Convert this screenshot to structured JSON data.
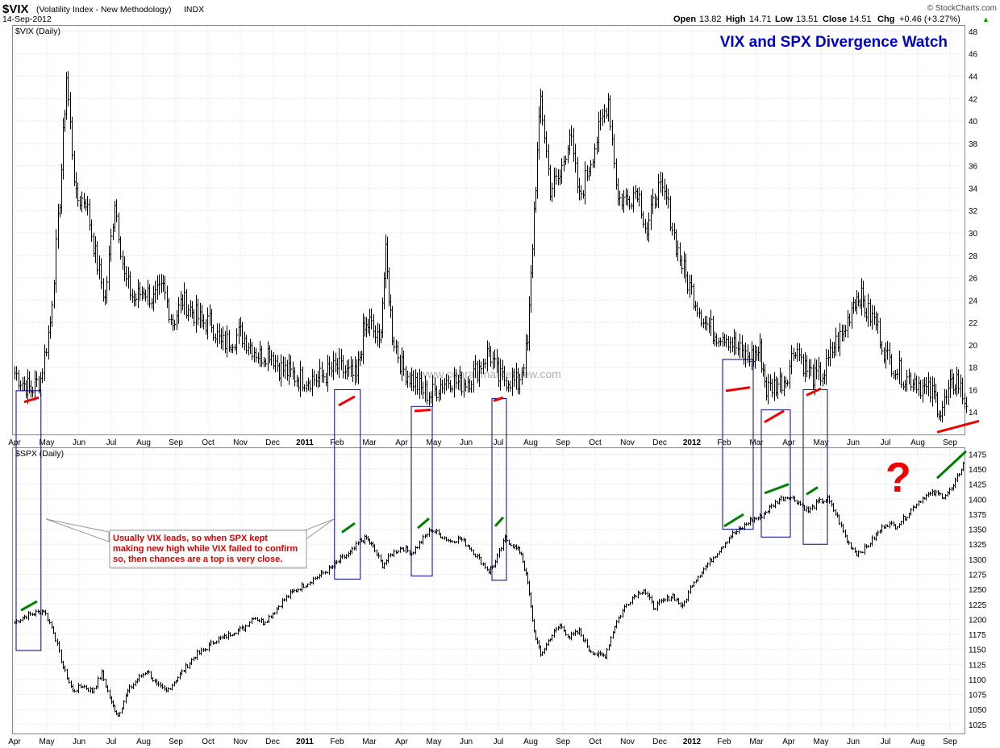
{
  "header": {
    "symbol": "$VIX",
    "description": "(Volatility Index - New Methodology)",
    "exchange": "INDX",
    "date": "14-Sep-2012",
    "brand": "© StockCharts.com",
    "open_label": "Open",
    "open": "13.82",
    "high_label": "High",
    "high": "14.71",
    "low_label": "Low",
    "low": "13.51",
    "close_label": "Close",
    "close": "14.51",
    "chg_label": "Chg",
    "chg": "+0.46 (+3.27%)",
    "chg_arrow": "▲"
  },
  "title": "VIX and SPX Divergence Watch",
  "watermark": "www.cobrasmarketview.com",
  "callout": {
    "lines": [
      "Usually VIX leads, so when SPX kept",
      "making new high while VIX failed to confirm",
      "so, then chances are a top is very close."
    ],
    "color": "#dd0000"
  },
  "question_mark": "?",
  "colors": {
    "box": "#00008b",
    "bearish": "#ee0000",
    "bullish": "#008000",
    "title": "#0000cc",
    "price": "#000000"
  },
  "months": [
    "Apr",
    "May",
    "Jun",
    "Jul",
    "Aug",
    "Sep",
    "Oct",
    "Nov",
    "Dec",
    "2011",
    "Feb",
    "Mar",
    "Apr",
    "May",
    "Jun",
    "Jul",
    "Aug",
    "Sep",
    "Oct",
    "Nov",
    "Dec",
    "2012",
    "Feb",
    "Mar",
    "Apr",
    "May",
    "Jun",
    "Jul",
    "Aug",
    "Sep"
  ],
  "bold_months": [
    "2011",
    "2012"
  ],
  "chart_data": [
    {
      "type": "bar",
      "title": "$VIX (Daily)",
      "panel": "vix",
      "ylim": [
        12,
        48.5
      ],
      "yticks": [
        14,
        16,
        18,
        20,
        22,
        24,
        26,
        28,
        30,
        32,
        34,
        36,
        38,
        40,
        42,
        44,
        46,
        48
      ],
      "x": [
        "Apr",
        "May",
        "Jun",
        "Jul",
        "Aug",
        "Sep",
        "Oct",
        "Nov",
        "Dec",
        "2011",
        "Feb",
        "Mar",
        "Apr",
        "May",
        "Jun",
        "Jul",
        "Aug",
        "Sep",
        "Oct",
        "Nov",
        "Dec",
        "2012",
        "Feb",
        "Mar",
        "Apr",
        "May",
        "Jun",
        "Jul",
        "Aug",
        "Sep"
      ],
      "anchors": [
        [
          0,
          17.5
        ],
        [
          0.3,
          16.5
        ],
        [
          0.5,
          16
        ],
        [
          0.8,
          17
        ],
        [
          1.1,
          22
        ],
        [
          1.4,
          33
        ],
        [
          1.6,
          44
        ],
        [
          1.9,
          33
        ],
        [
          2.2,
          33
        ],
        [
          2.5,
          28
        ],
        [
          2.8,
          24
        ],
        [
          3.1,
          33
        ],
        [
          3.4,
          26
        ],
        [
          3.7,
          24
        ],
        [
          4.0,
          25
        ],
        [
          4.3,
          24
        ],
        [
          4.6,
          25
        ],
        [
          4.9,
          22
        ],
        [
          5.2,
          24
        ],
        [
          5.5,
          23
        ],
        [
          5.8,
          22
        ],
        [
          6.1,
          22
        ],
        [
          6.4,
          20
        ],
        [
          6.7,
          20.5
        ],
        [
          7.0,
          21
        ],
        [
          7.3,
          20
        ],
        [
          7.6,
          19
        ],
        [
          7.9,
          19.5
        ],
        [
          8.2,
          18
        ],
        [
          8.5,
          17.5
        ],
        [
          8.8,
          17
        ],
        [
          9.1,
          17
        ],
        [
          9.4,
          17
        ],
        [
          9.7,
          17.5
        ],
        [
          10.0,
          18
        ],
        [
          10.3,
          17.5
        ],
        [
          10.6,
          17
        ],
        [
          10.8,
          21
        ],
        [
          11.0,
          22
        ],
        [
          11.3,
          20
        ],
        [
          11.5,
          28
        ],
        [
          11.7,
          21
        ],
        [
          12.0,
          18
        ],
        [
          12.3,
          17
        ],
        [
          12.6,
          16
        ],
        [
          12.9,
          15.5
        ],
        [
          13.2,
          16.5
        ],
        [
          13.5,
          17
        ],
        [
          13.8,
          16.5
        ],
        [
          14.1,
          17
        ],
        [
          14.4,
          18
        ],
        [
          14.7,
          19.5
        ],
        [
          15.0,
          17
        ],
        [
          15.3,
          17
        ],
        [
          15.6,
          16.5
        ],
        [
          15.9,
          20
        ],
        [
          16.1,
          32
        ],
        [
          16.3,
          42
        ],
        [
          16.6,
          34
        ],
        [
          16.9,
          35
        ],
        [
          17.2,
          39
        ],
        [
          17.5,
          33
        ],
        [
          17.8,
          36
        ],
        [
          18.1,
          39
        ],
        [
          18.4,
          42
        ],
        [
          18.7,
          33
        ],
        [
          19.0,
          33
        ],
        [
          19.3,
          34
        ],
        [
          19.6,
          30
        ],
        [
          19.9,
          34
        ],
        [
          20.2,
          33
        ],
        [
          20.5,
          29
        ],
        [
          20.8,
          26
        ],
        [
          21.1,
          24
        ],
        [
          21.4,
          22
        ],
        [
          21.7,
          21
        ],
        [
          22.0,
          21
        ],
        [
          22.3,
          20
        ],
        [
          22.6,
          19
        ],
        [
          22.9,
          19
        ],
        [
          23.1,
          19.5
        ],
        [
          23.3,
          16
        ],
        [
          23.6,
          16.5
        ],
        [
          23.9,
          17
        ],
        [
          24.2,
          20
        ],
        [
          24.5,
          18
        ],
        [
          24.8,
          17
        ],
        [
          25.1,
          17.5
        ],
        [
          25.4,
          20
        ],
        [
          25.7,
          21
        ],
        [
          26.0,
          24
        ],
        [
          26.2,
          24.5
        ],
        [
          26.4,
          23
        ],
        [
          26.7,
          22
        ],
        [
          27.0,
          19
        ],
        [
          27.3,
          18
        ],
        [
          27.6,
          17
        ],
        [
          27.9,
          17
        ],
        [
          28.2,
          16
        ],
        [
          28.5,
          15.5
        ],
        [
          28.7,
          14
        ],
        [
          29.0,
          16
        ],
        [
          29.2,
          17
        ],
        [
          29.5,
          14.5
        ]
      ]
    },
    {
      "type": "bar",
      "title": "$SPX (Daily)",
      "panel": "spx",
      "ylim": [
        1010,
        1485
      ],
      "yticks": [
        1025,
        1050,
        1075,
        1100,
        1125,
        1150,
        1175,
        1200,
        1225,
        1250,
        1275,
        1300,
        1325,
        1350,
        1375,
        1400,
        1425,
        1450,
        1475
      ],
      "x": [
        "Apr",
        "May",
        "Jun",
        "Jul",
        "Aug",
        "Sep",
        "Oct",
        "Nov",
        "Dec",
        "2011",
        "Feb",
        "Mar",
        "Apr",
        "May",
        "Jun",
        "Jul",
        "Aug",
        "Sep",
        "Oct",
        "Nov",
        "Dec",
        "2012",
        "Feb",
        "Mar",
        "Apr",
        "May",
        "Jun",
        "Jul",
        "Aug",
        "Sep"
      ],
      "anchors": [
        [
          0,
          1195
        ],
        [
          0.3,
          1205
        ],
        [
          0.6,
          1210
        ],
        [
          0.9,
          1215
        ],
        [
          1.2,
          1180
        ],
        [
          1.5,
          1120
        ],
        [
          1.8,
          1080
        ],
        [
          2.1,
          1090
        ],
        [
          2.4,
          1080
        ],
        [
          2.7,
          1110
        ],
        [
          3.0,
          1060
        ],
        [
          3.2,
          1040
        ],
        [
          3.5,
          1080
        ],
        [
          3.8,
          1100
        ],
        [
          4.1,
          1115
        ],
        [
          4.4,
          1090
        ],
        [
          4.7,
          1080
        ],
        [
          5.0,
          1100
        ],
        [
          5.3,
          1120
        ],
        [
          5.6,
          1140
        ],
        [
          5.9,
          1150
        ],
        [
          6.2,
          1165
        ],
        [
          6.5,
          1170
        ],
        [
          6.8,
          1180
        ],
        [
          7.1,
          1185
        ],
        [
          7.4,
          1205
        ],
        [
          7.7,
          1195
        ],
        [
          8.0,
          1210
        ],
        [
          8.3,
          1230
        ],
        [
          8.6,
          1245
        ],
        [
          8.9,
          1255
        ],
        [
          9.2,
          1265
        ],
        [
          9.5,
          1275
        ],
        [
          9.8,
          1285
        ],
        [
          10.1,
          1300
        ],
        [
          10.4,
          1310
        ],
        [
          10.7,
          1330
        ],
        [
          10.9,
          1335
        ],
        [
          11.1,
          1320
        ],
        [
          11.4,
          1290
        ],
        [
          11.7,
          1310
        ],
        [
          12.0,
          1320
        ],
        [
          12.3,
          1310
        ],
        [
          12.6,
          1330
        ],
        [
          12.9,
          1350
        ],
        [
          13.2,
          1340
        ],
        [
          13.5,
          1330
        ],
        [
          13.8,
          1335
        ],
        [
          14.1,
          1320
        ],
        [
          14.4,
          1300
        ],
        [
          14.7,
          1280
        ],
        [
          14.9,
          1295
        ],
        [
          15.2,
          1335
        ],
        [
          15.5,
          1320
        ],
        [
          15.7,
          1310
        ],
        [
          15.9,
          1260
        ],
        [
          16.1,
          1180
        ],
        [
          16.3,
          1140
        ],
        [
          16.6,
          1170
        ],
        [
          16.9,
          1190
        ],
        [
          17.2,
          1170
        ],
        [
          17.5,
          1180
        ],
        [
          17.8,
          1150
        ],
        [
          18.1,
          1140
        ],
        [
          18.3,
          1140
        ],
        [
          18.6,
          1190
        ],
        [
          18.9,
          1220
        ],
        [
          19.2,
          1240
        ],
        [
          19.5,
          1250
        ],
        [
          19.8,
          1220
        ],
        [
          20.1,
          1230
        ],
        [
          20.4,
          1240
        ],
        [
          20.7,
          1220
        ],
        [
          21.0,
          1260
        ],
        [
          21.3,
          1280
        ],
        [
          21.6,
          1300
        ],
        [
          21.9,
          1320
        ],
        [
          22.2,
          1340
        ],
        [
          22.5,
          1350
        ],
        [
          22.8,
          1365
        ],
        [
          23.1,
          1370
        ],
        [
          23.4,
          1385
        ],
        [
          23.7,
          1400
        ],
        [
          24.0,
          1405
        ],
        [
          24.3,
          1395
        ],
        [
          24.6,
          1380
        ],
        [
          24.9,
          1395
        ],
        [
          25.2,
          1400
        ],
        [
          25.5,
          1370
        ],
        [
          25.8,
          1330
        ],
        [
          26.1,
          1310
        ],
        [
          26.4,
          1320
        ],
        [
          26.7,
          1340
        ],
        [
          27.0,
          1360
        ],
        [
          27.3,
          1355
        ],
        [
          27.6,
          1370
        ],
        [
          27.9,
          1390
        ],
        [
          28.2,
          1405
        ],
        [
          28.5,
          1410
        ],
        [
          28.8,
          1405
        ],
        [
          29.1,
          1420
        ],
        [
          29.4,
          1460
        ]
      ]
    }
  ],
  "annotations": {
    "boxes": [
      {
        "x0": 0.05,
        "x1": 0.82,
        "vix_top": 15.9,
        "spx_bottom": 1148
      },
      {
        "x0": 9.92,
        "x1": 10.72,
        "vix_top": 16.0,
        "spx_bottom": 1267
      },
      {
        "x0": 12.3,
        "x1": 12.95,
        "vix_top": 14.5,
        "spx_bottom": 1272
      },
      {
        "x0": 14.8,
        "x1": 15.25,
        "vix_top": 15.2,
        "spx_bottom": 1265
      },
      {
        "x0": 21.95,
        "x1": 22.9,
        "vix_top": 18.7,
        "spx_bottom": 1350
      },
      {
        "x0": 23.15,
        "x1": 24.05,
        "vix_top": 14.2,
        "spx_bottom": 1337
      },
      {
        "x0": 24.45,
        "x1": 25.2,
        "vix_top": 16.0,
        "spx_bottom": 1325
      }
    ],
    "vix_lines": [
      {
        "x0": 0.3,
        "y0": 14.9,
        "x1": 0.75,
        "y1": 15.3
      },
      {
        "x0": 10.05,
        "y0": 14.6,
        "x1": 10.55,
        "y1": 15.4
      },
      {
        "x0": 12.4,
        "y0": 14.1,
        "x1": 12.9,
        "y1": 14.2
      },
      {
        "x0": 14.85,
        "y0": 15.0,
        "x1": 15.15,
        "y1": 15.3
      },
      {
        "x0": 22.05,
        "y0": 15.9,
        "x1": 22.8,
        "y1": 16.2
      },
      {
        "x0": 23.25,
        "y0": 13.1,
        "x1": 23.85,
        "y1": 14.1
      },
      {
        "x0": 24.55,
        "y0": 15.5,
        "x1": 25.0,
        "y1": 16.1
      },
      {
        "x0": 28.6,
        "y0": 12.2,
        "x1": 29.9,
        "y1": 13.2
      }
    ],
    "spx_lines": [
      {
        "x0": 0.2,
        "y0": 1215,
        "x1": 0.7,
        "y1": 1230
      },
      {
        "x0": 10.15,
        "y0": 1345,
        "x1": 10.55,
        "y1": 1360
      },
      {
        "x0": 12.5,
        "y0": 1352,
        "x1": 12.85,
        "y1": 1368
      },
      {
        "x0": 14.9,
        "y0": 1355,
        "x1": 15.15,
        "y1": 1370
      },
      {
        "x0": 22.0,
        "y0": 1355,
        "x1": 22.6,
        "y1": 1375
      },
      {
        "x0": 23.25,
        "y0": 1410,
        "x1": 24.0,
        "y1": 1425
      },
      {
        "x0": 24.55,
        "y0": 1408,
        "x1": 24.9,
        "y1": 1420
      },
      {
        "x0": 28.6,
        "y0": 1435,
        "x1": 29.5,
        "y1": 1480
      }
    ]
  }
}
